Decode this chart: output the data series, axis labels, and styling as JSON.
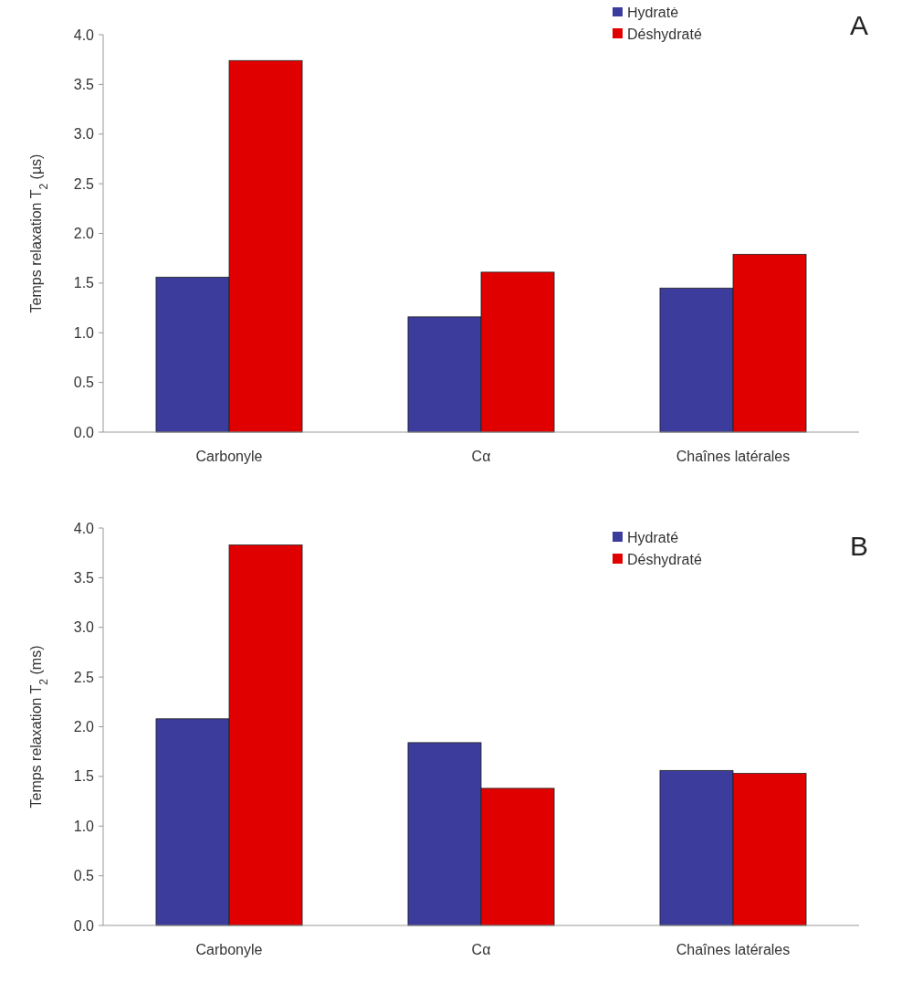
{
  "chart_data": [
    {
      "type": "bar",
      "ylabel": "Temps relaxation T$_{2}$ (µs)",
      "categories": [
        "Carbonyle",
        "Cα",
        "Chaînes latérales"
      ],
      "series": [
        {
          "name": "Hydraté",
          "color": "#3c3c9c",
          "values": [
            1.56,
            1.16,
            1.45
          ]
        },
        {
          "name": "Déshydraté",
          "color": "#e00000",
          "values": [
            3.74,
            1.61,
            1.79
          ]
        }
      ],
      "ylim": [
        0,
        4
      ],
      "yticks": [
        {
          "value": 0,
          "label": "0.0"
        },
        0.5,
        {
          "value": 1,
          "label": "1.0"
        },
        1.5,
        {
          "value": 2,
          "label": "2.0"
        },
        2.5,
        {
          "value": 3,
          "label": "3.0"
        },
        3.5,
        {
          "value": 4,
          "label": "4.0"
        }
      ],
      "grid": false,
      "legend": "top right",
      "annotations": [
        "A"
      ]
    },
    {
      "type": "bar",
      "ylabel": "Temps relaxation T$_{2}$ (ms)",
      "categories": [
        "Carbonyle",
        "Cα",
        "Chaînes latérales"
      ],
      "series": [
        {
          "name": "Hydraté",
          "color": "#3c3c9c",
          "values": [
            2.08,
            1.84,
            1.56
          ]
        },
        {
          "name": "Déshydraté",
          "color": "#e00000",
          "values": [
            3.83,
            1.38,
            1.53
          ]
        }
      ],
      "ylim": [
        0,
        4
      ],
      "yticks": [
        {
          "value": 0,
          "label": "0.0"
        },
        0.5,
        {
          "value": 1,
          "label": "1.0"
        },
        1.5,
        {
          "value": 2,
          "label": "2.0"
        },
        2.5,
        {
          "value": 3,
          "label": "3.0"
        },
        3.5,
        {
          "value": 4,
          "label": "4.0"
        }
      ],
      "grid": false,
      "legend": "top right",
      "annotations": [
        "B"
      ]
    }
  ]
}
